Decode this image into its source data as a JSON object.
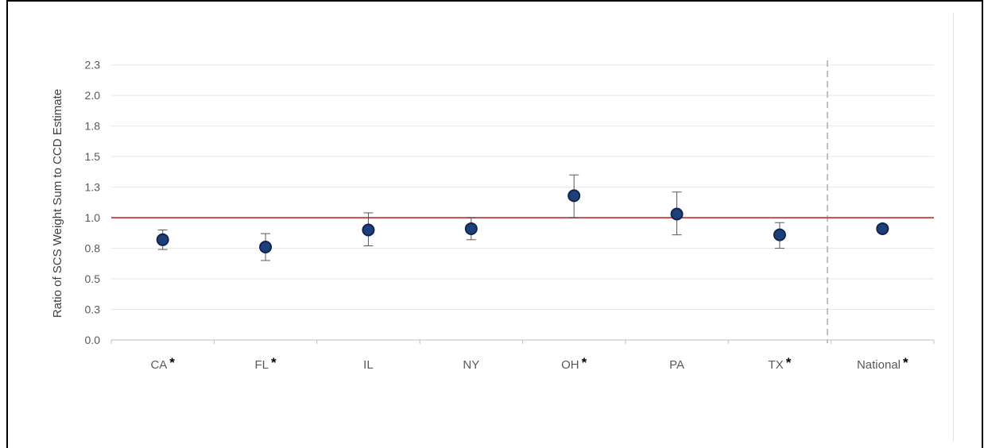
{
  "chart_data": {
    "type": "scatter",
    "title": "",
    "xlabel": "",
    "ylabel": "Ratio of SCS Weight Sum to CCD Estimate",
    "ylim": [
      0.0,
      2.3
    ],
    "yticks": [
      "0.0",
      "0.3",
      "0.5",
      "0.8",
      "1.0",
      "1.3",
      "1.5",
      "1.8",
      "2.0",
      "2.3"
    ],
    "ytick_values": [
      0.0,
      0.25,
      0.5,
      0.75,
      1.0,
      1.25,
      1.5,
      1.75,
      2.0,
      2.25
    ],
    "categories": [
      "CA",
      "FL",
      "IL",
      "NY",
      "OH",
      "PA",
      "TX",
      "National"
    ],
    "significance_marker": "*",
    "significant": [
      true,
      true,
      false,
      false,
      true,
      false,
      true,
      true
    ],
    "values": [
      0.82,
      0.76,
      0.9,
      0.91,
      1.18,
      1.03,
      0.86,
      0.91
    ],
    "error_lower": [
      0.74,
      0.65,
      0.77,
      0.82,
      1.0,
      0.86,
      0.75,
      null
    ],
    "error_upper": [
      0.9,
      0.87,
      1.04,
      1.0,
      1.35,
      1.21,
      0.96,
      null
    ],
    "reference_line": 1.0,
    "grid": true,
    "legend": "none",
    "colors": {
      "marker_fill": "#1f3f7a",
      "marker_stroke": "#0f2550",
      "reference_line": "#c0504d",
      "gridline": "#e6e6e6",
      "axis": "#bfbfbf",
      "error_bar": "#595959",
      "separator": "#bfbfbf"
    }
  }
}
